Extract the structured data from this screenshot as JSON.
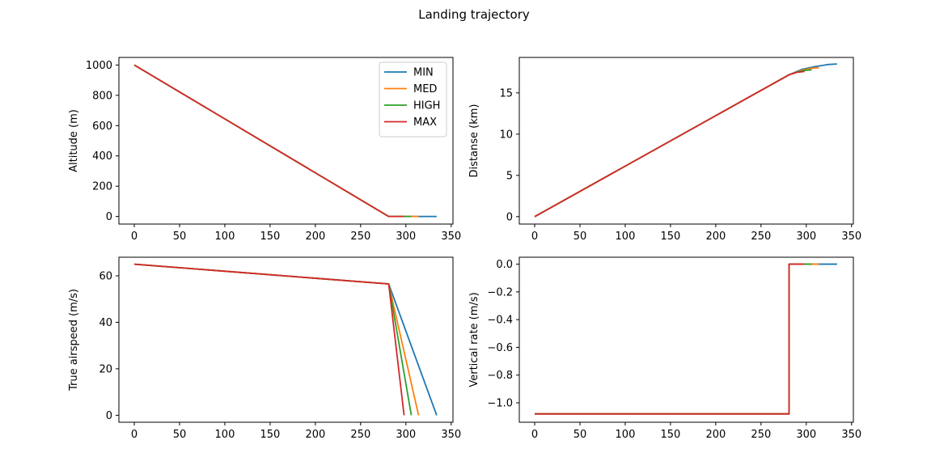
{
  "figure": {
    "title": "Landing trajectory"
  },
  "colors": {
    "MIN": "#1f77b4",
    "MED": "#ff7f0e",
    "HIGH": "#2ca02c",
    "MAX": "#d62728"
  },
  "legend": {
    "location": "upper-right",
    "entries": [
      "MIN",
      "MED",
      "HIGH",
      "MAX"
    ]
  },
  "chart_data": [
    {
      "type": "line",
      "title": "",
      "xlabel": "",
      "ylabel": "Altitude (m)",
      "xlim": [
        -17,
        352
      ],
      "ylim": [
        -50,
        1050
      ],
      "xticks": [
        0,
        50,
        100,
        150,
        200,
        250,
        300,
        350
      ],
      "yticks": [
        0,
        200,
        400,
        600,
        800,
        1000
      ],
      "grid": false,
      "legend": true,
      "series": [
        {
          "name": "MIN",
          "x": [
            0,
            281,
            334
          ],
          "y": [
            1000,
            0,
            0
          ]
        },
        {
          "name": "MED",
          "x": [
            0,
            281,
            314
          ],
          "y": [
            1000,
            0,
            0
          ]
        },
        {
          "name": "HIGH",
          "x": [
            0,
            281,
            306
          ],
          "y": [
            1000,
            0,
            0
          ]
        },
        {
          "name": "MAX",
          "x": [
            0,
            281,
            298
          ],
          "y": [
            1000,
            0,
            0
          ]
        }
      ]
    },
    {
      "type": "line",
      "title": "",
      "xlabel": "",
      "ylabel": "Distanse (km)",
      "xlim": [
        -17,
        352
      ],
      "ylim": [
        -0.9,
        19.3
      ],
      "xticks": [
        0,
        50,
        100,
        150,
        200,
        250,
        300,
        350
      ],
      "yticks": [
        0,
        5,
        10,
        15
      ],
      "grid": false,
      "legend": false,
      "series": [
        {
          "name": "MIN",
          "x": [
            0,
            281,
            295,
            310,
            325,
            334
          ],
          "y": [
            0,
            17.2,
            17.85,
            18.2,
            18.45,
            18.5
          ]
        },
        {
          "name": "MED",
          "x": [
            0,
            281,
            295,
            305,
            314
          ],
          "y": [
            0,
            17.2,
            17.75,
            17.98,
            18.05
          ]
        },
        {
          "name": "HIGH",
          "x": [
            0,
            281,
            292,
            300,
            306
          ],
          "y": [
            0,
            17.2,
            17.6,
            17.75,
            17.8
          ]
        },
        {
          "name": "MAX",
          "x": [
            0,
            281,
            290,
            298
          ],
          "y": [
            0,
            17.2,
            17.5,
            17.6
          ]
        }
      ]
    },
    {
      "type": "line",
      "title": "",
      "xlabel": "",
      "ylabel": "True airspeed (m/s)",
      "xlim": [
        -17,
        352
      ],
      "ylim": [
        -3,
        68
      ],
      "xticks": [
        0,
        50,
        100,
        150,
        200,
        250,
        300,
        350
      ],
      "yticks": [
        0,
        20,
        40,
        60
      ],
      "grid": false,
      "legend": false,
      "series": [
        {
          "name": "MIN",
          "x": [
            0,
            281,
            334
          ],
          "y": [
            65,
            56.5,
            0
          ]
        },
        {
          "name": "MED",
          "x": [
            0,
            281,
            314
          ],
          "y": [
            65,
            56.5,
            0
          ]
        },
        {
          "name": "HIGH",
          "x": [
            0,
            281,
            306
          ],
          "y": [
            65,
            56.5,
            0
          ]
        },
        {
          "name": "MAX",
          "x": [
            0,
            281,
            298
          ],
          "y": [
            65,
            56.5,
            0
          ]
        }
      ]
    },
    {
      "type": "line",
      "title": "",
      "xlabel": "",
      "ylabel": "Vertical rate (m/s)",
      "xlim": [
        -17,
        352
      ],
      "ylim": [
        -1.14,
        0.05
      ],
      "xticks": [
        0,
        50,
        100,
        150,
        200,
        250,
        300,
        350
      ],
      "yticks": [
        0.0,
        -0.2,
        -0.4,
        -0.6,
        -0.8,
        -1.0
      ],
      "ytick_labels": [
        "0.0",
        "−0.2",
        "−0.4",
        "−0.6",
        "−0.8",
        "−1.0"
      ],
      "grid": false,
      "legend": false,
      "series": [
        {
          "name": "MIN",
          "x": [
            0,
            281,
            281,
            334
          ],
          "y": [
            -1.08,
            -1.08,
            0,
            0
          ]
        },
        {
          "name": "MED",
          "x": [
            0,
            281,
            281,
            314
          ],
          "y": [
            -1.08,
            -1.08,
            0,
            0
          ]
        },
        {
          "name": "HIGH",
          "x": [
            0,
            281,
            281,
            306
          ],
          "y": [
            -1.08,
            -1.08,
            0,
            0
          ]
        },
        {
          "name": "MAX",
          "x": [
            0,
            281,
            281,
            298
          ],
          "y": [
            -1.08,
            -1.08,
            0,
            0
          ]
        }
      ]
    }
  ]
}
